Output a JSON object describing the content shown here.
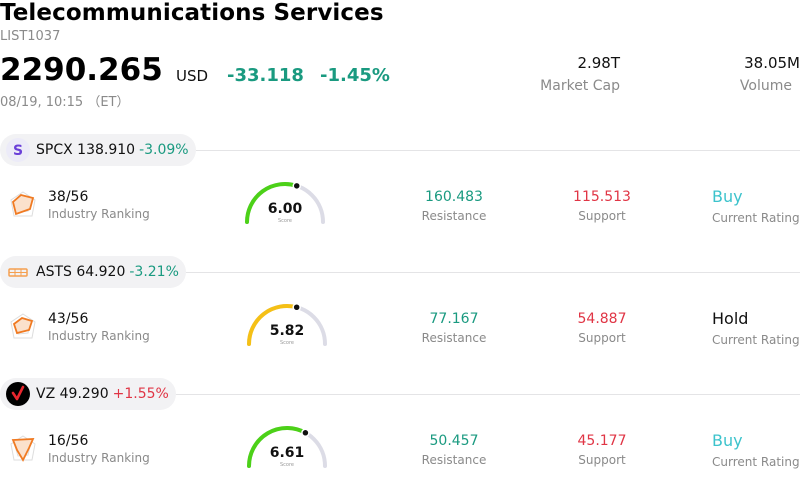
{
  "header": {
    "title": "Telecommunications Services",
    "code": "LIST1037",
    "price": "2290.265",
    "currency": "USD",
    "change": "-33.118",
    "change_pct": "-1.45%",
    "time": "08/19, 10:15 （ET）",
    "market_cap_value": "2.98T",
    "market_cap_label": "Market Cap",
    "volume_value": "38.05M",
    "volume_label": "Volume"
  },
  "colors": {
    "up_green": "#1a9a80",
    "down_red": "#e03545",
    "buy_teal": "#3cc3cc",
    "gauge_green": "#4cd118",
    "gauge_yellow": "#f5c016",
    "gauge_track": "#dcdce6"
  },
  "stocks": [
    {
      "symbol": "SPCX",
      "price": "138.910",
      "change_pct": "-3.09%",
      "change_color": "#1a9a80",
      "logo": "spcx-s-logo",
      "rank": "38/56",
      "rank_label": "Industry Ranking",
      "score": "6.00",
      "score_fraction": 0.6,
      "score_caption": "Score",
      "gauge_color": "#4cd118",
      "resistance": "160.483",
      "resistance_label": "Resistance",
      "support": "115.513",
      "support_label": "Support",
      "rating": "Buy",
      "rating_label": "Current Rating",
      "rating_color": "#3cc3cc"
    },
    {
      "symbol": "ASTS",
      "price": "64.920",
      "change_pct": "-3.21%",
      "change_color": "#1a9a80",
      "logo": "asts-satellite-logo",
      "rank": "43/56",
      "rank_label": "Industry Ranking",
      "score": "5.82",
      "score_fraction": 0.582,
      "score_caption": "Score",
      "gauge_color": "#f5c016",
      "resistance": "77.167",
      "resistance_label": "Resistance",
      "support": "54.887",
      "support_label": "Support",
      "rating": "Hold",
      "rating_label": "Current Rating",
      "rating_color": "#111111"
    },
    {
      "symbol": "VZ",
      "price": "49.290",
      "change_pct": "+1.55%",
      "change_color": "#e03545",
      "logo": "vz-check-logo",
      "rank": "16/56",
      "rank_label": "Industry Ranking",
      "score": "6.61",
      "score_fraction": 0.661,
      "score_caption": "Score",
      "gauge_color": "#4cd118",
      "resistance": "50.457",
      "resistance_label": "Resistance",
      "support": "45.177",
      "support_label": "Support",
      "rating": "Buy",
      "rating_label": "Current Rating",
      "rating_color": "#3cc3cc"
    }
  ]
}
